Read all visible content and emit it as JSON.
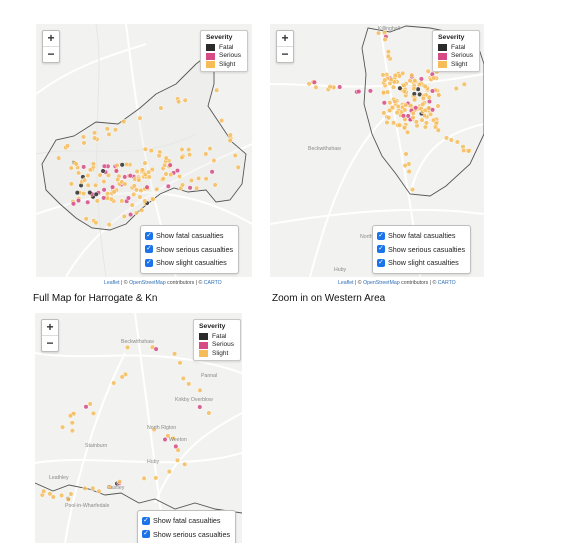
{
  "zoom_controls": {
    "zoom_in": "+",
    "zoom_out": "−"
  },
  "legend": {
    "title": "Severity",
    "items": [
      {
        "label": "Fatal",
        "color": "#2b2b2b"
      },
      {
        "label": "Serious",
        "color": "#d64a86"
      },
      {
        "label": "Slight",
        "color": "#f6bc5a"
      }
    ]
  },
  "checkboxes": {
    "fatal": "Show fatal casualties",
    "serious": "Show serious casualties",
    "slight": "Show slight casualties"
  },
  "attribution": {
    "leaflet": "Leaflet",
    "sep1": " | © ",
    "osm": "OpenStreetMap",
    "contributors": " contributors | © ",
    "carto": "CARTO"
  },
  "maps": {
    "full": {
      "caption": "Full Map for Harrogate & Kn"
    },
    "western": {
      "caption": "Zoom in on Western Area",
      "places": [
        "Killinghall",
        "Beckwithshaw",
        "North Rigton",
        "Huby"
      ]
    },
    "southern": {
      "places": [
        "Beckwithshaw",
        "Pannal",
        "Kirkby Overblow",
        "North Rigton",
        "Weeton",
        "Huby",
        "Stainburn",
        "Leathley",
        "Castley",
        "Pool-in-Wharfedale"
      ]
    }
  },
  "colors": {
    "fatal": "#2b2b2b",
    "serious": "#d64a86",
    "slight": "#f6bc5a",
    "road": "#ffffff",
    "boundary": "#555555"
  }
}
